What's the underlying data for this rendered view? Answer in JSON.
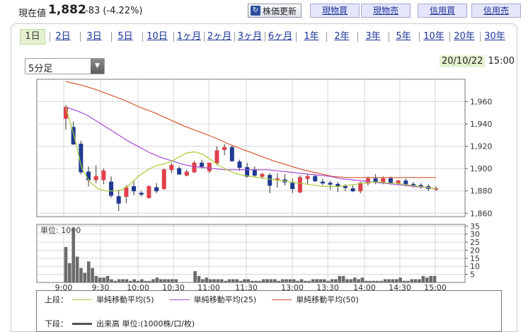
{
  "header": {
    "price_label": "現在値",
    "price_value": "1,882",
    "price_change": "-83 (-4.22%)",
    "update_button": "株価更新",
    "trade_buttons": [
      "現物買",
      "現物売",
      "信用買",
      "信用売"
    ]
  },
  "tabs": [
    {
      "label": "1日",
      "active": true
    },
    {
      "label": "2日"
    },
    {
      "label": "3日"
    },
    {
      "label": "5日"
    },
    {
      "label": "10日"
    },
    {
      "label": "1ヶ月"
    },
    {
      "label": "2ヶ月"
    },
    {
      "label": "3ヶ月"
    },
    {
      "label": "6ヶ月"
    },
    {
      "label": "1年"
    },
    {
      "label": "2年"
    },
    {
      "label": "3年"
    },
    {
      "label": "5年"
    },
    {
      "label": "10年"
    },
    {
      "label": "20年"
    },
    {
      "label": "30年"
    }
  ],
  "interval_select": {
    "value": "5分足"
  },
  "datetime": {
    "date": "20/10/22",
    "time": "15:00"
  },
  "colors": {
    "up": "#e0404a",
    "down": "#1f3a93",
    "ma5": "#a6cc36",
    "ma25": "#a64ad6",
    "ma50": "#d9542f",
    "volume": "#6b6b6b",
    "grid": "#d6d6d6"
  },
  "chart_data": [
    {
      "type": "candlestick",
      "y_ticks": [
        "1,960",
        "1,940",
        "1,920",
        "1,900",
        "1,880",
        "1,860"
      ],
      "ylim": [
        1857,
        1980
      ],
      "x_tick_labels": [
        "9:00",
        "9:30",
        "10:00",
        "10:30",
        "11:00",
        "11:30",
        "13:00",
        "13:30",
        "14:00",
        "14:30",
        "15:00"
      ],
      "grid": true,
      "candles": [
        {
          "o": 1945,
          "h": 1957,
          "l": 1935,
          "c": 1955
        },
        {
          "o": 1937,
          "h": 1942,
          "l": 1921,
          "c": 1922
        },
        {
          "o": 1922,
          "h": 1925,
          "l": 1895,
          "c": 1897
        },
        {
          "o": 1897,
          "h": 1902,
          "l": 1884,
          "c": 1890
        },
        {
          "o": 1890,
          "h": 1903,
          "l": 1887,
          "c": 1893
        },
        {
          "o": 1890,
          "h": 1900,
          "l": 1886,
          "c": 1898
        },
        {
          "o": 1888,
          "h": 1893,
          "l": 1874,
          "c": 1876
        },
        {
          "o": 1875,
          "h": 1881,
          "l": 1862,
          "c": 1869
        },
        {
          "o": 1875,
          "h": 1885,
          "l": 1869,
          "c": 1883
        },
        {
          "o": 1884,
          "h": 1889,
          "l": 1876,
          "c": 1880
        },
        {
          "o": 1878,
          "h": 1880,
          "l": 1875,
          "c": 1877
        },
        {
          "o": 1874,
          "h": 1885,
          "l": 1873,
          "c": 1884
        },
        {
          "o": 1883,
          "h": 1887,
          "l": 1878,
          "c": 1880
        },
        {
          "o": 1882,
          "h": 1900,
          "l": 1881,
          "c": 1899
        },
        {
          "o": 1899,
          "h": 1905,
          "l": 1896,
          "c": 1903
        },
        {
          "o": 1900,
          "h": 1902,
          "l": 1895,
          "c": 1895
        },
        {
          "o": 1894,
          "h": 1899,
          "l": 1893,
          "c": 1897
        },
        {
          "o": 1897,
          "h": 1907,
          "l": 1896,
          "c": 1905
        },
        {
          "o": 1905,
          "h": 1908,
          "l": 1900,
          "c": 1902
        },
        {
          "o": 1898,
          "h": 1905,
          "l": 1896,
          "c": 1905
        },
        {
          "o": 1905,
          "h": 1920,
          "l": 1903,
          "c": 1916
        },
        {
          "o": 1917,
          "h": 1922,
          "l": 1912,
          "c": 1919
        },
        {
          "o": 1919,
          "h": 1921,
          "l": 1906,
          "c": 1907
        },
        {
          "o": 1906,
          "h": 1908,
          "l": 1898,
          "c": 1901
        },
        {
          "o": 1901,
          "h": 1905,
          "l": 1892,
          "c": 1893
        },
        {
          "o": 1899,
          "h": 1902,
          "l": 1892,
          "c": 1894
        },
        {
          "o": 1893,
          "h": 1896,
          "l": 1891,
          "c": 1895
        },
        {
          "o": 1894,
          "h": 1896,
          "l": 1878,
          "c": 1885
        },
        {
          "o": 1891,
          "h": 1896,
          "l": 1883,
          "c": 1891
        },
        {
          "o": 1890,
          "h": 1895,
          "l": 1885,
          "c": 1888
        },
        {
          "o": 1887,
          "h": 1891,
          "l": 1878,
          "c": 1882
        },
        {
          "o": 1879,
          "h": 1894,
          "l": 1878,
          "c": 1892
        },
        {
          "o": 1891,
          "h": 1895,
          "l": 1886,
          "c": 1893
        },
        {
          "o": 1893,
          "h": 1895,
          "l": 1888,
          "c": 1889
        },
        {
          "o": 1888,
          "h": 1891,
          "l": 1885,
          "c": 1887
        },
        {
          "o": 1887,
          "h": 1889,
          "l": 1881,
          "c": 1886
        },
        {
          "o": 1886,
          "h": 1888,
          "l": 1879,
          "c": 1884
        },
        {
          "o": 1884,
          "h": 1886,
          "l": 1880,
          "c": 1883
        },
        {
          "o": 1882,
          "h": 1885,
          "l": 1879,
          "c": 1880
        },
        {
          "o": 1880,
          "h": 1888,
          "l": 1878,
          "c": 1887
        },
        {
          "o": 1887,
          "h": 1893,
          "l": 1885,
          "c": 1891
        },
        {
          "o": 1891,
          "h": 1895,
          "l": 1886,
          "c": 1888
        },
        {
          "o": 1888,
          "h": 1893,
          "l": 1886,
          "c": 1891
        },
        {
          "o": 1891,
          "h": 1893,
          "l": 1886,
          "c": 1887
        },
        {
          "o": 1887,
          "h": 1890,
          "l": 1885,
          "c": 1889
        },
        {
          "o": 1889,
          "h": 1891,
          "l": 1884,
          "c": 1886
        },
        {
          "o": 1886,
          "h": 1888,
          "l": 1883,
          "c": 1885
        },
        {
          "o": 1885,
          "h": 1887,
          "l": 1882,
          "c": 1884
        },
        {
          "o": 1884,
          "h": 1886,
          "l": 1880,
          "c": 1882
        },
        {
          "o": 1882,
          "h": 1884,
          "l": 1880,
          "c": 1882
        }
      ],
      "ma5": [
        1955,
        1930,
        1900,
        1888,
        1882,
        1880,
        1880,
        1881,
        1886,
        1893,
        1898,
        1902,
        1904,
        1906,
        1910,
        1914,
        1915,
        1913,
        1908,
        1903,
        1899,
        1896,
        1894,
        1893,
        1892,
        1891,
        1890,
        1889,
        1888,
        1887,
        1886,
        1885,
        1884,
        1884,
        1884,
        1885,
        1886,
        1887,
        1888,
        1888,
        1887,
        1887,
        1886,
        1885,
        1884,
        1883,
        1882
      ],
      "ma25": [
        1955,
        1952,
        1948,
        1942,
        1936,
        1930,
        1924,
        1919,
        1914,
        1910,
        1907,
        1904,
        1902,
        1901,
        1900,
        1899,
        1899,
        1899,
        1899,
        1899,
        1898,
        1897,
        1896,
        1895,
        1894,
        1893,
        1891,
        1890,
        1889,
        1888,
        1887,
        1886,
        1885,
        1884,
        1883,
        1882
      ],
      "ma50": [
        1978,
        1975,
        1971,
        1966,
        1961,
        1955,
        1950,
        1944,
        1938,
        1933,
        1928,
        1922,
        1917,
        1912,
        1907,
        1903,
        1899,
        1896,
        1893,
        1892,
        1892,
        1892,
        1892,
        1892,
        1892,
        1892
      ]
    },
    {
      "type": "bar",
      "title": "出来高",
      "unit_label": "単位: 1000",
      "y_ticks": [
        "35",
        "30",
        "25",
        "20",
        "15",
        "10",
        "5"
      ],
      "ylim": [
        0,
        36
      ],
      "values": [
        22,
        12,
        34,
        16,
        9,
        6,
        13,
        9,
        4,
        3,
        3,
        4,
        2,
        1,
        2,
        2,
        2,
        1,
        2,
        1,
        2,
        1,
        1,
        2,
        3,
        2,
        2,
        2,
        2,
        2,
        0,
        0,
        0,
        0,
        7,
        4,
        2,
        3,
        2,
        2,
        2,
        2,
        1,
        2,
        2,
        2,
        1,
        2,
        2,
        1,
        1,
        1,
        2,
        2,
        2,
        2,
        1,
        2,
        2,
        2,
        2,
        1,
        2,
        1,
        1,
        2,
        2,
        2,
        2,
        1,
        2,
        2,
        4,
        4,
        2,
        2,
        3,
        2,
        3,
        1,
        1,
        1,
        1,
        1,
        2,
        2,
        2,
        2,
        3,
        1,
        1,
        2,
        2,
        2,
        4,
        3,
        4,
        4
      ]
    }
  ],
  "legend": {
    "upper_label": "上段：",
    "lower_label": "下段：",
    "ma5_label": "単純移動平均(5)",
    "ma25_label": "単純移動平均(25)",
    "ma50_label": "単純移動平均(50)",
    "volume_label": "出来高 単位:(1000株/口/枚)"
  }
}
